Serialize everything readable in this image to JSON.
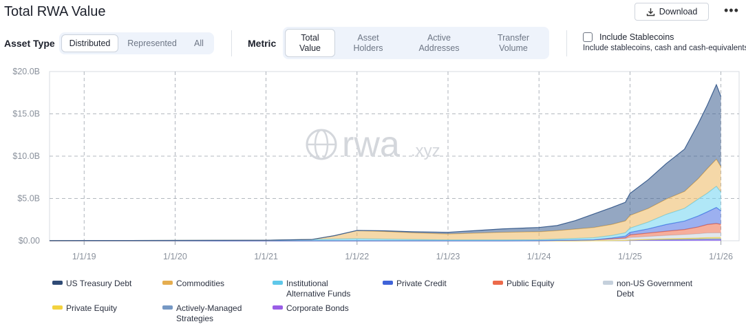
{
  "header": {
    "title": "Total RWA Value",
    "download_label": "Download",
    "more_label": "•••"
  },
  "asset_type": {
    "label": "Asset Type",
    "options": [
      "Distributed",
      "Represented",
      "All"
    ],
    "selected": "Distributed"
  },
  "metric": {
    "label": "Metric",
    "options": [
      {
        "line1": "Total",
        "line2": "Value"
      },
      {
        "line1": "Asset",
        "line2": "Holders"
      },
      {
        "line1": "Active",
        "line2": "Addresses"
      },
      {
        "line1": "Transfer",
        "line2": "Volume"
      }
    ],
    "selected": "Total Value"
  },
  "stablecoins": {
    "label": "Include Stablecoins",
    "sub": "Include stablecoins, cash and cash-equivalents",
    "checked": false
  },
  "watermark": {
    "text": "rwa",
    "suffix": ".xyz"
  },
  "chart_data": {
    "type": "area",
    "stacked": true,
    "y_ticks": [
      "$0.00",
      "$5.0B",
      "$10.0B",
      "$15.0B",
      "$20.0B"
    ],
    "ylim": [
      0,
      20
    ],
    "y_unit": "$B",
    "x_ticks": [
      "1/1/19",
      "1/1/20",
      "1/1/21",
      "1/1/22",
      "1/1/23",
      "1/1/24",
      "1/1/25",
      "1/1/26"
    ],
    "x": [
      2018.62,
      2019.0,
      2019.5,
      2020.0,
      2020.5,
      2021.0,
      2021.2,
      2021.5,
      2021.75,
      2022.0,
      2022.3,
      2022.6,
      2023.0,
      2023.3,
      2023.6,
      2024.0,
      2024.2,
      2024.4,
      2024.6,
      2024.8,
      2024.95,
      2025.0,
      2025.2,
      2025.4,
      2025.6,
      2025.75,
      2025.85,
      2025.95,
      2026.0
    ],
    "grid": true,
    "legend_position": "bottom",
    "series": [
      {
        "name": "Corporate Bonds",
        "color": "#8b5cf6",
        "values": [
          0,
          0,
          0,
          0,
          0,
          0,
          0,
          0,
          0,
          0,
          0,
          0,
          0,
          0,
          0,
          0,
          0,
          0,
          0.01,
          0.02,
          0.03,
          0.04,
          0.06,
          0.07,
          0.08,
          0.09,
          0.1,
          0.1,
          0.1
        ]
      },
      {
        "name": "Actively-Managed Strategies",
        "color": "#7a9cc6",
        "values": [
          0,
          0,
          0,
          0,
          0,
          0,
          0,
          0,
          0,
          0,
          0,
          0,
          0,
          0,
          0,
          0,
          0,
          0,
          0,
          0,
          0,
          0.02,
          0.05,
          0.08,
          0.1,
          0.12,
          0.14,
          0.15,
          0.15
        ]
      },
      {
        "name": "Private Equity",
        "color": "#f5d547",
        "values": [
          0,
          0,
          0,
          0,
          0,
          0,
          0,
          0,
          0,
          0,
          0,
          0,
          0,
          0,
          0,
          0,
          0,
          0,
          0,
          0.01,
          0.02,
          0.03,
          0.05,
          0.08,
          0.1,
          0.12,
          0.13,
          0.14,
          0.14
        ]
      },
      {
        "name": "non-US Government Debt",
        "color": "#c9d3de",
        "values": [
          0,
          0,
          0,
          0,
          0,
          0,
          0,
          0,
          0,
          0,
          0,
          0,
          0,
          0,
          0,
          0.02,
          0.05,
          0.08,
          0.1,
          0.15,
          0.2,
          0.3,
          0.35,
          0.4,
          0.45,
          0.5,
          0.55,
          0.55,
          0.55
        ]
      },
      {
        "name": "Public Equity",
        "color": "#ef6b4a",
        "values": [
          0,
          0,
          0,
          0,
          0,
          0,
          0,
          0,
          0,
          0,
          0,
          0,
          0,
          0,
          0,
          0,
          0,
          0,
          0,
          0.05,
          0.1,
          0.3,
          0.4,
          0.5,
          0.6,
          0.8,
          1.0,
          1.1,
          1.0
        ]
      },
      {
        "name": "Private Credit",
        "color": "#4a6fe3",
        "values": [
          0,
          0,
          0,
          0,
          0,
          0,
          0,
          0,
          0,
          0,
          0,
          0,
          0,
          0,
          0,
          0,
          0,
          0,
          0,
          0.1,
          0.2,
          0.3,
          0.5,
          0.8,
          1.0,
          1.3,
          1.5,
          1.9,
          1.6
        ]
      },
      {
        "name": "Institutional Alternative Funds",
        "color": "#6fd3f0",
        "values": [
          0.02,
          0.03,
          0.03,
          0.04,
          0.05,
          0.06,
          0.1,
          0.15,
          0.2,
          0.25,
          0.2,
          0.15,
          0.1,
          0.1,
          0.1,
          0.1,
          0.15,
          0.2,
          0.25,
          0.3,
          0.4,
          0.5,
          0.8,
          1.2,
          1.5,
          2.0,
          2.2,
          2.5,
          2.2
        ]
      },
      {
        "name": "Commodities",
        "color": "#edb860",
        "values": [
          0,
          0,
          0,
          0,
          0,
          0,
          0,
          0,
          0.4,
          0.95,
          0.9,
          0.8,
          0.7,
          0.8,
          0.9,
          0.95,
          1.0,
          1.1,
          1.2,
          1.3,
          1.4,
          1.5,
          1.6,
          1.8,
          2.0,
          2.4,
          2.9,
          3.2,
          3.0
        ]
      },
      {
        "name": "US Treasury Debt",
        "color": "#3d5f8f",
        "values": [
          0,
          0,
          0,
          0,
          0,
          0,
          0,
          0,
          0,
          0.02,
          0.08,
          0.12,
          0.2,
          0.3,
          0.4,
          0.5,
          0.6,
          1.0,
          1.6,
          2.0,
          2.2,
          2.6,
          3.4,
          4.2,
          5.0,
          6.5,
          7.5,
          8.8,
          8.3
        ]
      }
    ]
  },
  "legend": [
    {
      "name": "US Treasury Debt",
      "color": "#2f4a75",
      "lines": [
        "US Treasury Debt"
      ]
    },
    {
      "name": "Commodities",
      "color": "#e5ad4f",
      "lines": [
        "Commodities"
      ]
    },
    {
      "name": "Institutional Alternative Funds",
      "color": "#5fc8ea",
      "lines": [
        "Institutional",
        "Alternative Funds"
      ]
    },
    {
      "name": "Private Credit",
      "color": "#3f63d8",
      "lines": [
        "Private Credit"
      ]
    },
    {
      "name": "Public Equity",
      "color": "#ec6a4a",
      "lines": [
        "Public Equity"
      ]
    },
    {
      "name": "non-US Government Debt",
      "color": "#c5d0dc",
      "lines": [
        "non-US Government",
        "Debt"
      ]
    },
    {
      "name": "Private Equity",
      "color": "#f3d23f",
      "lines": [
        "Private Equity"
      ]
    },
    {
      "name": "Actively-Managed Strategies",
      "color": "#7698c4",
      "lines": [
        "Actively-Managed",
        "Strategies"
      ]
    },
    {
      "name": "Corporate Bonds",
      "color": "#9a5ee6",
      "lines": [
        "Corporate Bonds"
      ]
    }
  ]
}
